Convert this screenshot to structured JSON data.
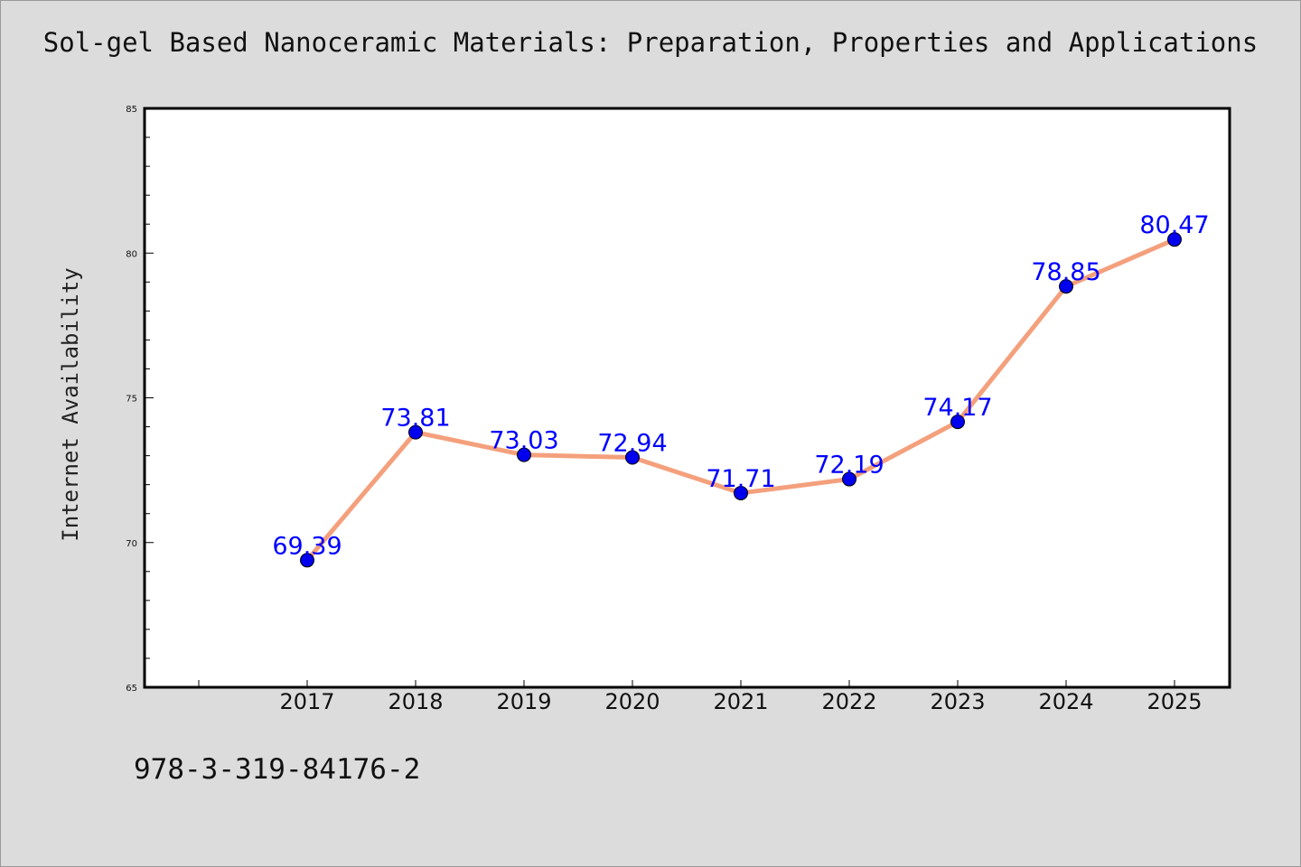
{
  "title": "Sol-gel Based Nanoceramic Materials: Preparation, Properties and Applications",
  "footer_text": "978-3-319-84176-2",
  "colors": {
    "background": "#dcdcdc",
    "plot_area": "#ffffff",
    "line": "#f4a07c",
    "marker": "#0000ee",
    "marker_edge": "#000000",
    "data_label": "#0000ff"
  },
  "chart_data": {
    "type": "line",
    "title": "Sol-gel Based Nanoceramic Materials: Preparation, Properties and Applications",
    "xlabel": "",
    "ylabel": "Internet Availability",
    "categories": [
      "2017",
      "2018",
      "2019",
      "2020",
      "2021",
      "2022",
      "2023",
      "2024",
      "2025"
    ],
    "series": [
      {
        "values": [
          69.39,
          73.81,
          73.03,
          72.94,
          71.71,
          72.19,
          74.17,
          78.85,
          80.47
        ],
        "data_labels": [
          "69.39",
          "73.81",
          "73.03",
          "72.94",
          "71.71",
          "72.19",
          "74.17",
          "78.85",
          "80.47"
        ]
      }
    ],
    "ylim": [
      65,
      85
    ],
    "yticks": [
      "65",
      "70",
      "75",
      "80",
      "85"
    ],
    "grid": false,
    "legend": "none"
  }
}
